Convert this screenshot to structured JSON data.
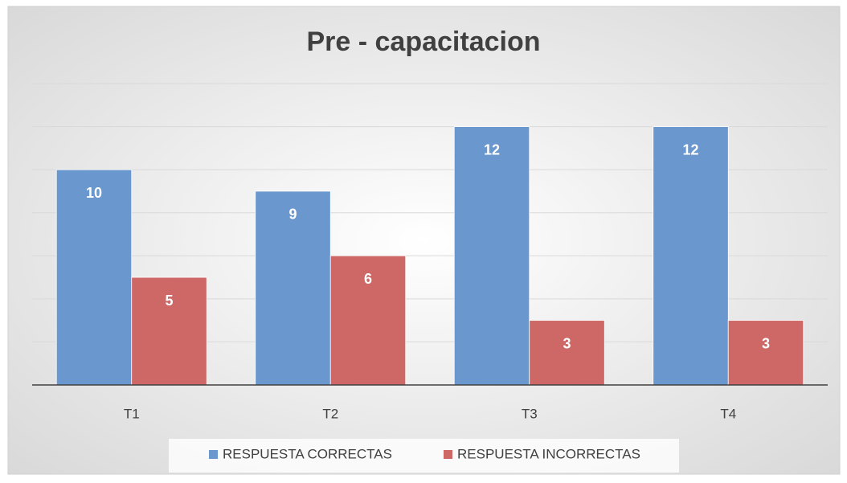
{
  "chart_data": {
    "type": "bar",
    "title": "Pre - capacitacion",
    "categories": [
      "T1",
      "T2",
      "T3",
      "T4"
    ],
    "series": [
      {
        "name": "RESPUESTA CORRECTAS",
        "color": "#6a97cd",
        "values": [
          10,
          9,
          12,
          12
        ]
      },
      {
        "name": "RESPUESTA INCORRECTAS",
        "color": "#cd6866",
        "values": [
          5,
          6,
          3,
          3
        ]
      }
    ],
    "ylim": [
      0,
      14
    ],
    "yticks": [
      0,
      2,
      4,
      6,
      8,
      10,
      12,
      14
    ],
    "grid": true,
    "legend": "bottom"
  }
}
